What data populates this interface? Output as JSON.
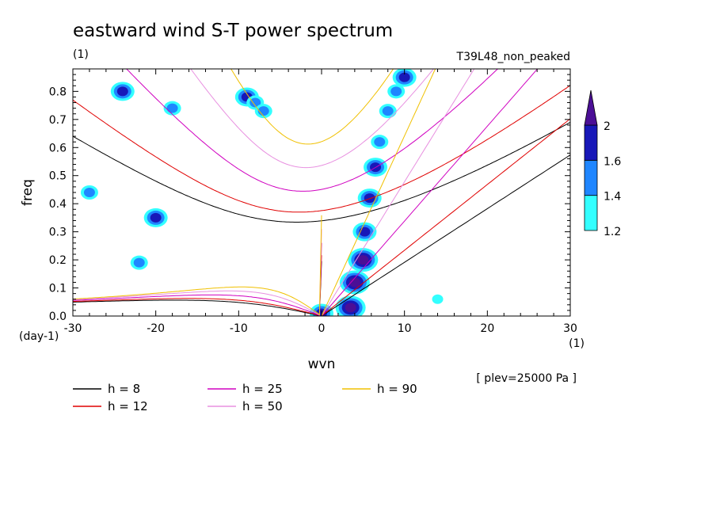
{
  "chart_data": {
    "type": "contour",
    "title": "eastward wind S-T power spectrum",
    "title_unit": "(1)",
    "run_label": "T39L48_non_peaked",
    "xlabel": "wvn",
    "ylabel": "freq",
    "x_unit": "(1)",
    "y_unit": "(day-1)",
    "plev_label": "[ plev=25000 Pa ]",
    "xlim": [
      -30,
      30
    ],
    "ylim": [
      0,
      0.88
    ],
    "xticks": [
      -30,
      -20,
      -10,
      0,
      10,
      20,
      30
    ],
    "xtick_labels": [
      "-30",
      "-20",
      "-10",
      "0",
      "10",
      "20",
      "30"
    ],
    "yticks": [
      0,
      0.1,
      0.2,
      0.3,
      0.4,
      0.5,
      0.6,
      0.7,
      0.8
    ],
    "ytick_labels": [
      "0.0",
      "0.1",
      "0.2",
      "0.3",
      "0.4",
      "0.5",
      "0.6",
      "0.7",
      "0.8"
    ],
    "colorbar": {
      "levels": [
        1.2,
        1.4,
        1.6,
        2
      ],
      "level_labels": [
        "1.2",
        "1.4",
        "1.6",
        "2"
      ],
      "colors": [
        "#33ffff",
        "#1f86ff",
        "#1818b8",
        "#4b0f96"
      ]
    },
    "dispersion_curves": [
      {
        "name": "h =  8",
        "h": 8,
        "color": "#000000"
      },
      {
        "name": "h = 12",
        "h": 12,
        "color": "#e00000"
      },
      {
        "name": "h = 25",
        "h": 25,
        "color": "#d000c0"
      },
      {
        "name": "h = 50",
        "h": 50,
        "color": "#e890e0"
      },
      {
        "name": "h = 90",
        "h": 90,
        "color": "#f0c000"
      }
    ],
    "contour_regions": [
      {
        "x": 3.5,
        "y": 0.03,
        "level": 2
      },
      {
        "x": 4,
        "y": 0.12,
        "level": 2
      },
      {
        "x": 5,
        "y": 0.2,
        "level": 2
      },
      {
        "x": 5.2,
        "y": 0.3,
        "level": 1.6
      },
      {
        "x": 5.8,
        "y": 0.42,
        "level": 1.6
      },
      {
        "x": 6.5,
        "y": 0.53,
        "level": 1.6
      },
      {
        "x": 7,
        "y": 0.62,
        "level": 1.4
      },
      {
        "x": 8,
        "y": 0.73,
        "level": 1.4
      },
      {
        "x": 10,
        "y": 0.85,
        "level": 1.6
      },
      {
        "x": 9,
        "y": 0.8,
        "level": 1.4
      },
      {
        "x": -24,
        "y": 0.8,
        "level": 1.6
      },
      {
        "x": -20,
        "y": 0.35,
        "level": 1.6
      },
      {
        "x": -9,
        "y": 0.78,
        "level": 1.6
      },
      {
        "x": -8,
        "y": 0.76,
        "level": 1.4
      },
      {
        "x": -7,
        "y": 0.73,
        "level": 1.4
      },
      {
        "x": -28,
        "y": 0.44,
        "level": 1.4
      },
      {
        "x": -18,
        "y": 0.74,
        "level": 1.4
      },
      {
        "x": -22,
        "y": 0.19,
        "level": 1.4
      },
      {
        "x": 0,
        "y": 0.01,
        "level": 1.6
      },
      {
        "x": 14,
        "y": 0.06,
        "level": 1.2
      }
    ]
  },
  "legend": {
    "items": [
      {
        "label": "h =  8",
        "color": "#000000"
      },
      {
        "label": "h = 12",
        "color": "#e00000"
      },
      {
        "label": "h = 25",
        "color": "#d000c0"
      },
      {
        "label": "h = 50",
        "color": "#e890e0"
      },
      {
        "label": "h = 90",
        "color": "#f0c000"
      }
    ]
  }
}
